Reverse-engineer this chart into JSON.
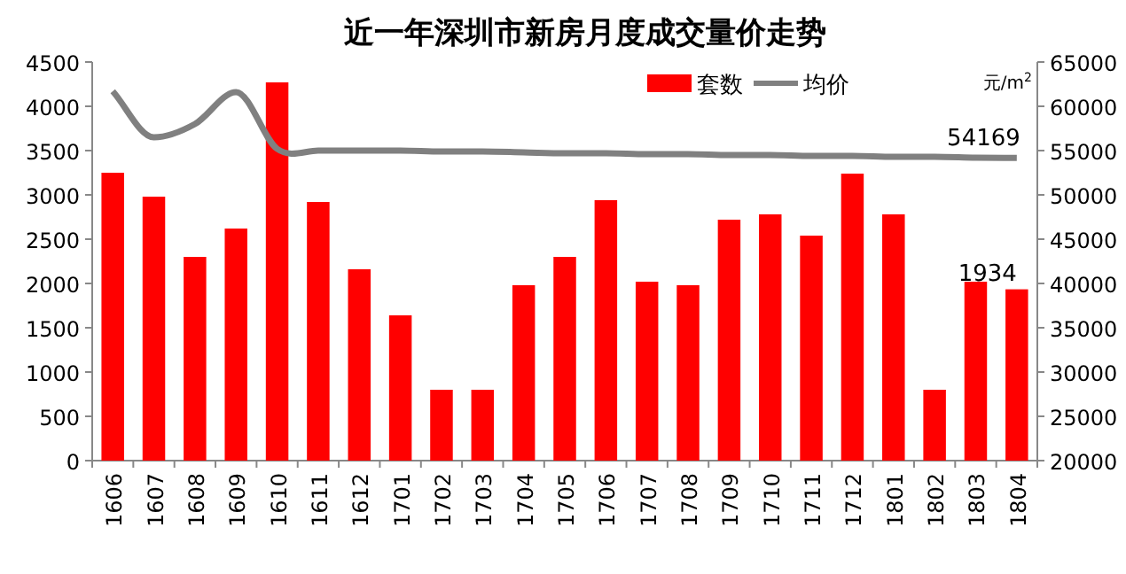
{
  "chart_data": {
    "type": "bar",
    "title": "近一年深圳市新房月度成交量价走势",
    "y2label": "元/m$^{2}$",
    "categories": [
      "1606",
      "1607",
      "1608",
      "1609",
      "1610",
      "1611",
      "1612",
      "1701",
      "1702",
      "1703",
      "1704",
      "1705",
      "1706",
      "1707",
      "1708",
      "1709",
      "1710",
      "1711",
      "1712",
      "1801",
      "1802",
      "1803",
      "1804"
    ],
    "series": [
      {
        "name": "套数",
        "color": "#ff0000",
        "values": [
          3250,
          2980,
          2300,
          2620,
          4270,
          2920,
          2160,
          1640,
          800,
          800,
          1980,
          2300,
          2940,
          2020,
          1980,
          2720,
          2780,
          2540,
          3240,
          2780,
          800,
          2020,
          1934
        ],
        "value_labels": [
          null,
          null,
          null,
          null,
          null,
          null,
          null,
          null,
          null,
          null,
          null,
          null,
          null,
          null,
          null,
          null,
          null,
          null,
          null,
          null,
          null,
          null,
          "1934"
        ]
      },
      {
        "name": "均价",
        "type": "line",
        "axis": "y2",
        "color": "#808080",
        "line_style": "solid",
        "marker": "none",
        "values": [
          61700,
          56500,
          58000,
          61600,
          55200,
          55000,
          55000,
          55000,
          54900,
          54900,
          54800,
          54700,
          54700,
          54600,
          54600,
          54500,
          54500,
          54400,
          54400,
          54300,
          54300,
          54200,
          54169
        ],
        "value_labels": [
          null,
          null,
          null,
          null,
          null,
          null,
          null,
          null,
          null,
          null,
          null,
          null,
          null,
          null,
          null,
          null,
          null,
          null,
          null,
          null,
          null,
          null,
          "54169"
        ]
      }
    ],
    "ylim": [
      0,
      4500
    ],
    "yticks": [
      0,
      500,
      1000,
      1500,
      2000,
      2500,
      3000,
      3500,
      4000,
      4500
    ],
    "y2lim": [
      20000,
      65000
    ],
    "y2ticks": [
      20000,
      25000,
      30000,
      35000,
      40000,
      45000,
      50000,
      55000,
      60000,
      65000
    ],
    "grid": false,
    "legend": "top right"
  }
}
